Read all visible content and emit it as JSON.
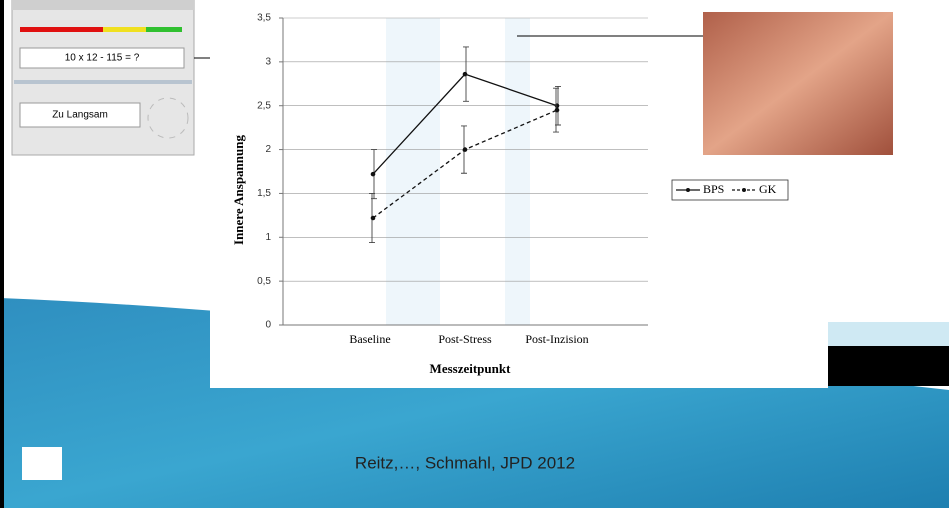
{
  "chart_data": {
    "type": "line",
    "x_label": "Messzeitpunkt",
    "y_label": "Innere Anspannung",
    "categories": [
      "Baseline",
      "Post-Stress",
      "Post-Inzision"
    ],
    "series": [
      {
        "name": "BPS",
        "color": "#111111",
        "dash": false,
        "values": [
          1.72,
          2.86,
          2.5
        ],
        "errors": [
          0.28,
          0.31,
          0.22
        ]
      },
      {
        "name": "GK",
        "color": "#111111",
        "dash": true,
        "values": [
          1.22,
          2.0,
          2.45
        ],
        "errors": [
          0.28,
          0.27,
          0.25
        ]
      }
    ],
    "ylim": [
      0,
      3.5
    ],
    "yticks": [
      0,
      {
        "value": 0.5,
        "label": "0,5"
      },
      1,
      {
        "value": 1.5,
        "label": "1,5"
      },
      2,
      {
        "value": 2.5,
        "label": "2,5"
      },
      3,
      {
        "value": 3.5,
        "label": "3,5"
      }
    ],
    "grid": true,
    "legend": "right"
  },
  "inset": {
    "question": "10 x 12 - 115 = ?",
    "feedback": "Zu Langsam"
  },
  "citation": "Reitz,…, Schmahl, JPD 2012"
}
